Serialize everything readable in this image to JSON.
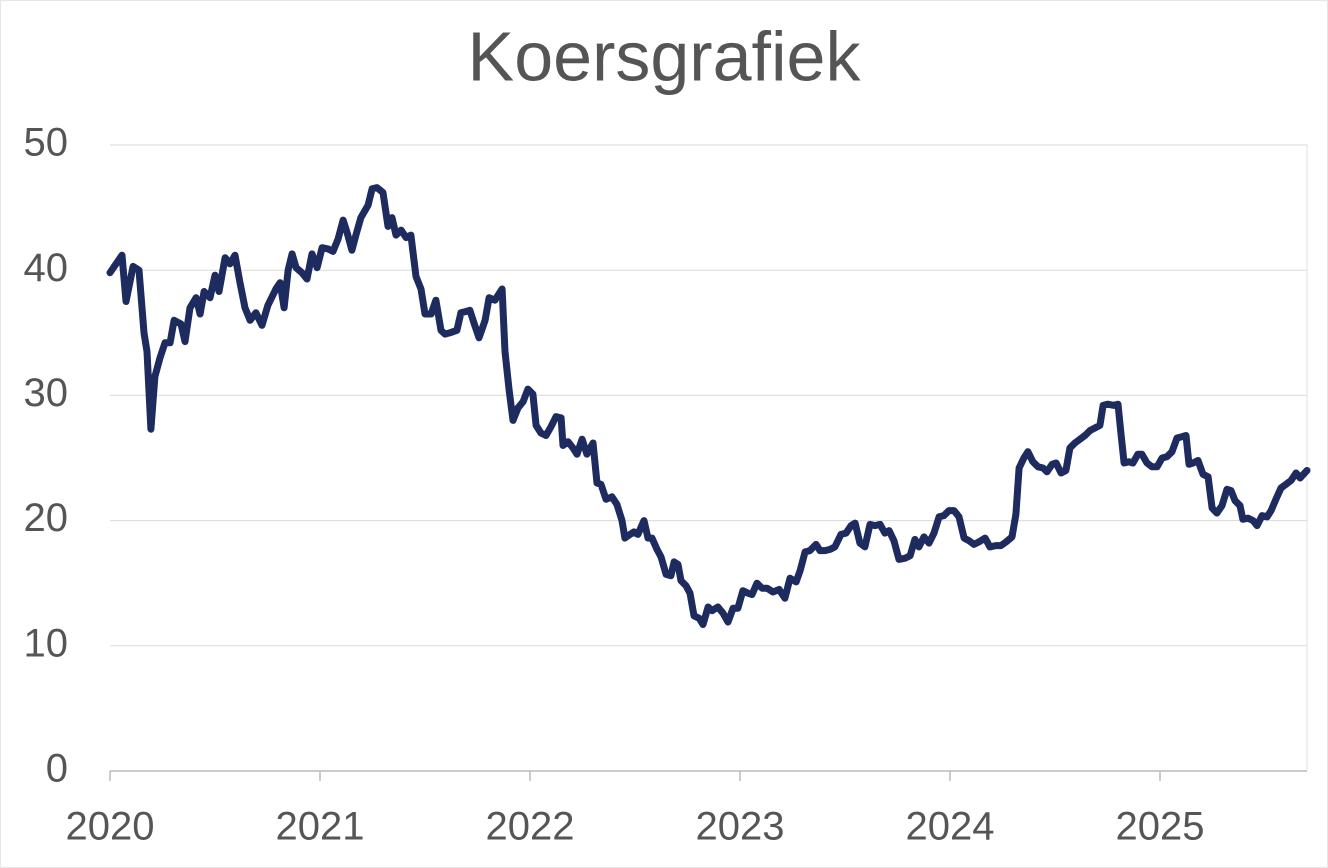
{
  "chart_data": {
    "type": "line",
    "title": "Koersgrafiek",
    "color": "#1d2b5e",
    "grid": true,
    "xlim": [
      2020,
      2025.7
    ],
    "xticks": [
      2020,
      2021,
      2022,
      2023,
      2024,
      2025
    ],
    "ylim": [
      0,
      50
    ],
    "yticks": [
      0,
      10,
      20,
      30,
      40,
      50
    ],
    "x": [
      2020.0,
      2020.057,
      2020.076,
      2020.11,
      2020.138,
      2020.162,
      2020.176,
      2020.195,
      2020.214,
      2020.238,
      2020.262,
      2020.286,
      2020.305,
      2020.338,
      2020.357,
      2020.381,
      2020.41,
      2020.429,
      2020.448,
      2020.476,
      2020.5,
      2020.519,
      2020.548,
      2020.571,
      2020.595,
      2020.619,
      2020.643,
      2020.667,
      2020.695,
      2020.724,
      2020.752,
      2020.79,
      2020.81,
      2020.829,
      2020.848,
      2020.867,
      2020.886,
      2020.914,
      2020.938,
      2020.962,
      2020.986,
      2021.01,
      2021.038,
      2021.062,
      2021.086,
      2021.11,
      2021.129,
      2021.152,
      2021.171,
      2021.195,
      2021.229,
      2021.248,
      2021.271,
      2021.3,
      2021.324,
      2021.343,
      2021.362,
      2021.386,
      2021.41,
      2021.433,
      2021.457,
      2021.481,
      2021.5,
      2021.529,
      2021.552,
      2021.576,
      2021.595,
      2021.619,
      2021.652,
      2021.671,
      2021.695,
      2021.714,
      2021.733,
      2021.757,
      2021.786,
      2021.805,
      2021.833,
      2021.867,
      2021.881,
      2021.9,
      2021.919,
      2021.943,
      2021.967,
      2021.99,
      2022.014,
      2022.029,
      2022.052,
      2022.076,
      2022.1,
      2022.124,
      2022.148,
      2022.157,
      2022.181,
      2022.205,
      2022.224,
      2022.248,
      2022.271,
      2022.3,
      2022.319,
      2022.338,
      2022.362,
      2022.39,
      2022.414,
      2022.438,
      2022.452,
      2022.476,
      2022.495,
      2022.514,
      2022.543,
      2022.562,
      2022.581,
      2022.605,
      2022.624,
      2022.648,
      2022.671,
      2022.686,
      2022.705,
      2022.719,
      2022.743,
      2022.762,
      2022.781,
      2022.805,
      2022.824,
      2022.848,
      2022.867,
      2022.895,
      2022.919,
      2022.943,
      2022.967,
      2022.99,
      2023.014,
      2023.038,
      2023.057,
      2023.081,
      2023.105,
      2023.129,
      2023.157,
      2023.186,
      2023.214,
      2023.238,
      2023.267,
      2023.286,
      2023.31,
      2023.333,
      2023.362,
      2023.381,
      2023.405,
      2023.429,
      2023.452,
      2023.481,
      2023.505,
      2023.529,
      2023.548,
      2023.571,
      2023.595,
      2023.619,
      2023.643,
      2023.667,
      2023.69,
      2023.71,
      2023.733,
      2023.757,
      2023.786,
      2023.81,
      2023.833,
      2023.852,
      2023.876,
      2023.9,
      2023.924,
      2023.948,
      2023.971,
      2023.995,
      2024.019,
      2024.043,
      2024.067,
      2024.09,
      2024.114,
      2024.138,
      2024.167,
      2024.19,
      2024.219,
      2024.243,
      2024.267,
      2024.295,
      2024.314,
      2024.329,
      2024.352,
      2024.371,
      2024.395,
      2024.419,
      2024.443,
      2024.462,
      2024.486,
      2024.505,
      2024.529,
      2024.552,
      2024.571,
      2024.595,
      2024.619,
      2024.643,
      2024.667,
      2024.69,
      2024.714,
      2024.729,
      2024.752,
      2024.781,
      2024.8,
      2024.814,
      2024.829,
      2024.852,
      2024.871,
      2024.895,
      2024.914,
      2024.938,
      2024.962,
      2024.986,
      2025.01,
      2025.033,
      2025.057,
      2025.081,
      2025.105,
      2025.124,
      2025.138,
      2025.157,
      2025.181,
      2025.205,
      2025.229,
      2025.248,
      2025.271,
      2025.295,
      2025.319,
      2025.338,
      2025.357,
      2025.381,
      2025.395,
      2025.419,
      2025.443,
      2025.462,
      2025.486,
      2025.51,
      2025.529,
      2025.552,
      2025.576,
      2025.6,
      2025.624,
      2025.648,
      2025.667,
      2025.7
    ],
    "values": [
      39.8,
      41.2,
      37.5,
      40.3,
      40,
      35,
      33.5,
      27.3,
      31.5,
      33,
      34.2,
      34.2,
      36,
      35.7,
      34.3,
      37,
      37.8,
      36.5,
      38.3,
      37.8,
      39.6,
      38.3,
      41,
      40.5,
      41.2,
      39,
      37,
      36,
      36.6,
      35.6,
      37.2,
      38.5,
      39,
      37,
      40,
      41.3,
      40.2,
      39.8,
      39.3,
      41.3,
      40.2,
      41.8,
      41.7,
      41.5,
      42.5,
      44,
      43,
      41.6,
      42.8,
      44.2,
      45.2,
      46.5,
      46.6,
      46.2,
      43.5,
      44.2,
      42.8,
      43.2,
      42.6,
      42.8,
      39.5,
      38.5,
      36.5,
      36.5,
      37.6,
      35.2,
      34.9,
      35,
      35.2,
      36.6,
      36.7,
      36.8,
      35.8,
      34.6,
      36,
      37.8,
      37.6,
      38.5,
      33.5,
      30.5,
      28,
      29,
      29.5,
      30.5,
      30.1,
      27.6,
      27,
      26.8,
      27.5,
      28.3,
      28.2,
      26,
      26.3,
      25.8,
      25.3,
      26.5,
      25.3,
      26.2,
      23,
      22.9,
      21.7,
      21.9,
      21.3,
      20,
      18.6,
      18.9,
      19.1,
      18.9,
      20,
      18.6,
      18.6,
      17.7,
      17.1,
      15.7,
      15.6,
      16.7,
      16.5,
      15.2,
      14.8,
      14.2,
      12.4,
      12.2,
      11.7,
      13.1,
      12.8,
      13.1,
      12.6,
      11.9,
      13,
      13,
      14.4,
      14.2,
      14.1,
      15,
      14.6,
      14.6,
      14.3,
      14.5,
      13.8,
      15.4,
      15.1,
      16,
      17.5,
      17.6,
      18.1,
      17.6,
      17.6,
      17.7,
      17.9,
      18.9,
      19,
      19.6,
      19.8,
      18.2,
      17.9,
      19.7,
      19.6,
      19.7,
      19,
      19.2,
      18.4,
      16.9,
      17,
      17.2,
      18.5,
      17.9,
      18.7,
      18.2,
      19,
      20.3,
      20.4,
      20.8,
      20.8,
      20.3,
      18.6,
      18.4,
      18.1,
      18.3,
      18.6,
      17.9,
      18,
      18,
      18.3,
      18.7,
      20.5,
      24.2,
      25,
      25.5,
      24.7,
      24.3,
      24.2,
      23.9,
      24.5,
      24.6,
      23.8,
      24,
      25.8,
      26.2,
      26.5,
      26.8,
      27.2,
      27.4,
      27.6,
      29.2,
      29.3,
      29.2,
      29.3,
      27,
      24.6,
      24.7,
      24.6,
      25.3,
      25.3,
      24.6,
      24.3,
      24.3,
      25,
      25.1,
      25.5,
      26.6,
      26.7,
      26.8,
      24.5,
      24.6,
      24.8,
      23.7,
      23.5,
      21,
      20.6,
      21.2,
      22.5,
      22.4,
      21.6,
      21.2,
      20.1,
      20.2,
      20,
      19.6,
      20.4,
      20.3,
      20.8,
      21.7,
      22.6,
      22.9,
      23.2,
      23.8,
      23.4,
      24
    ]
  }
}
